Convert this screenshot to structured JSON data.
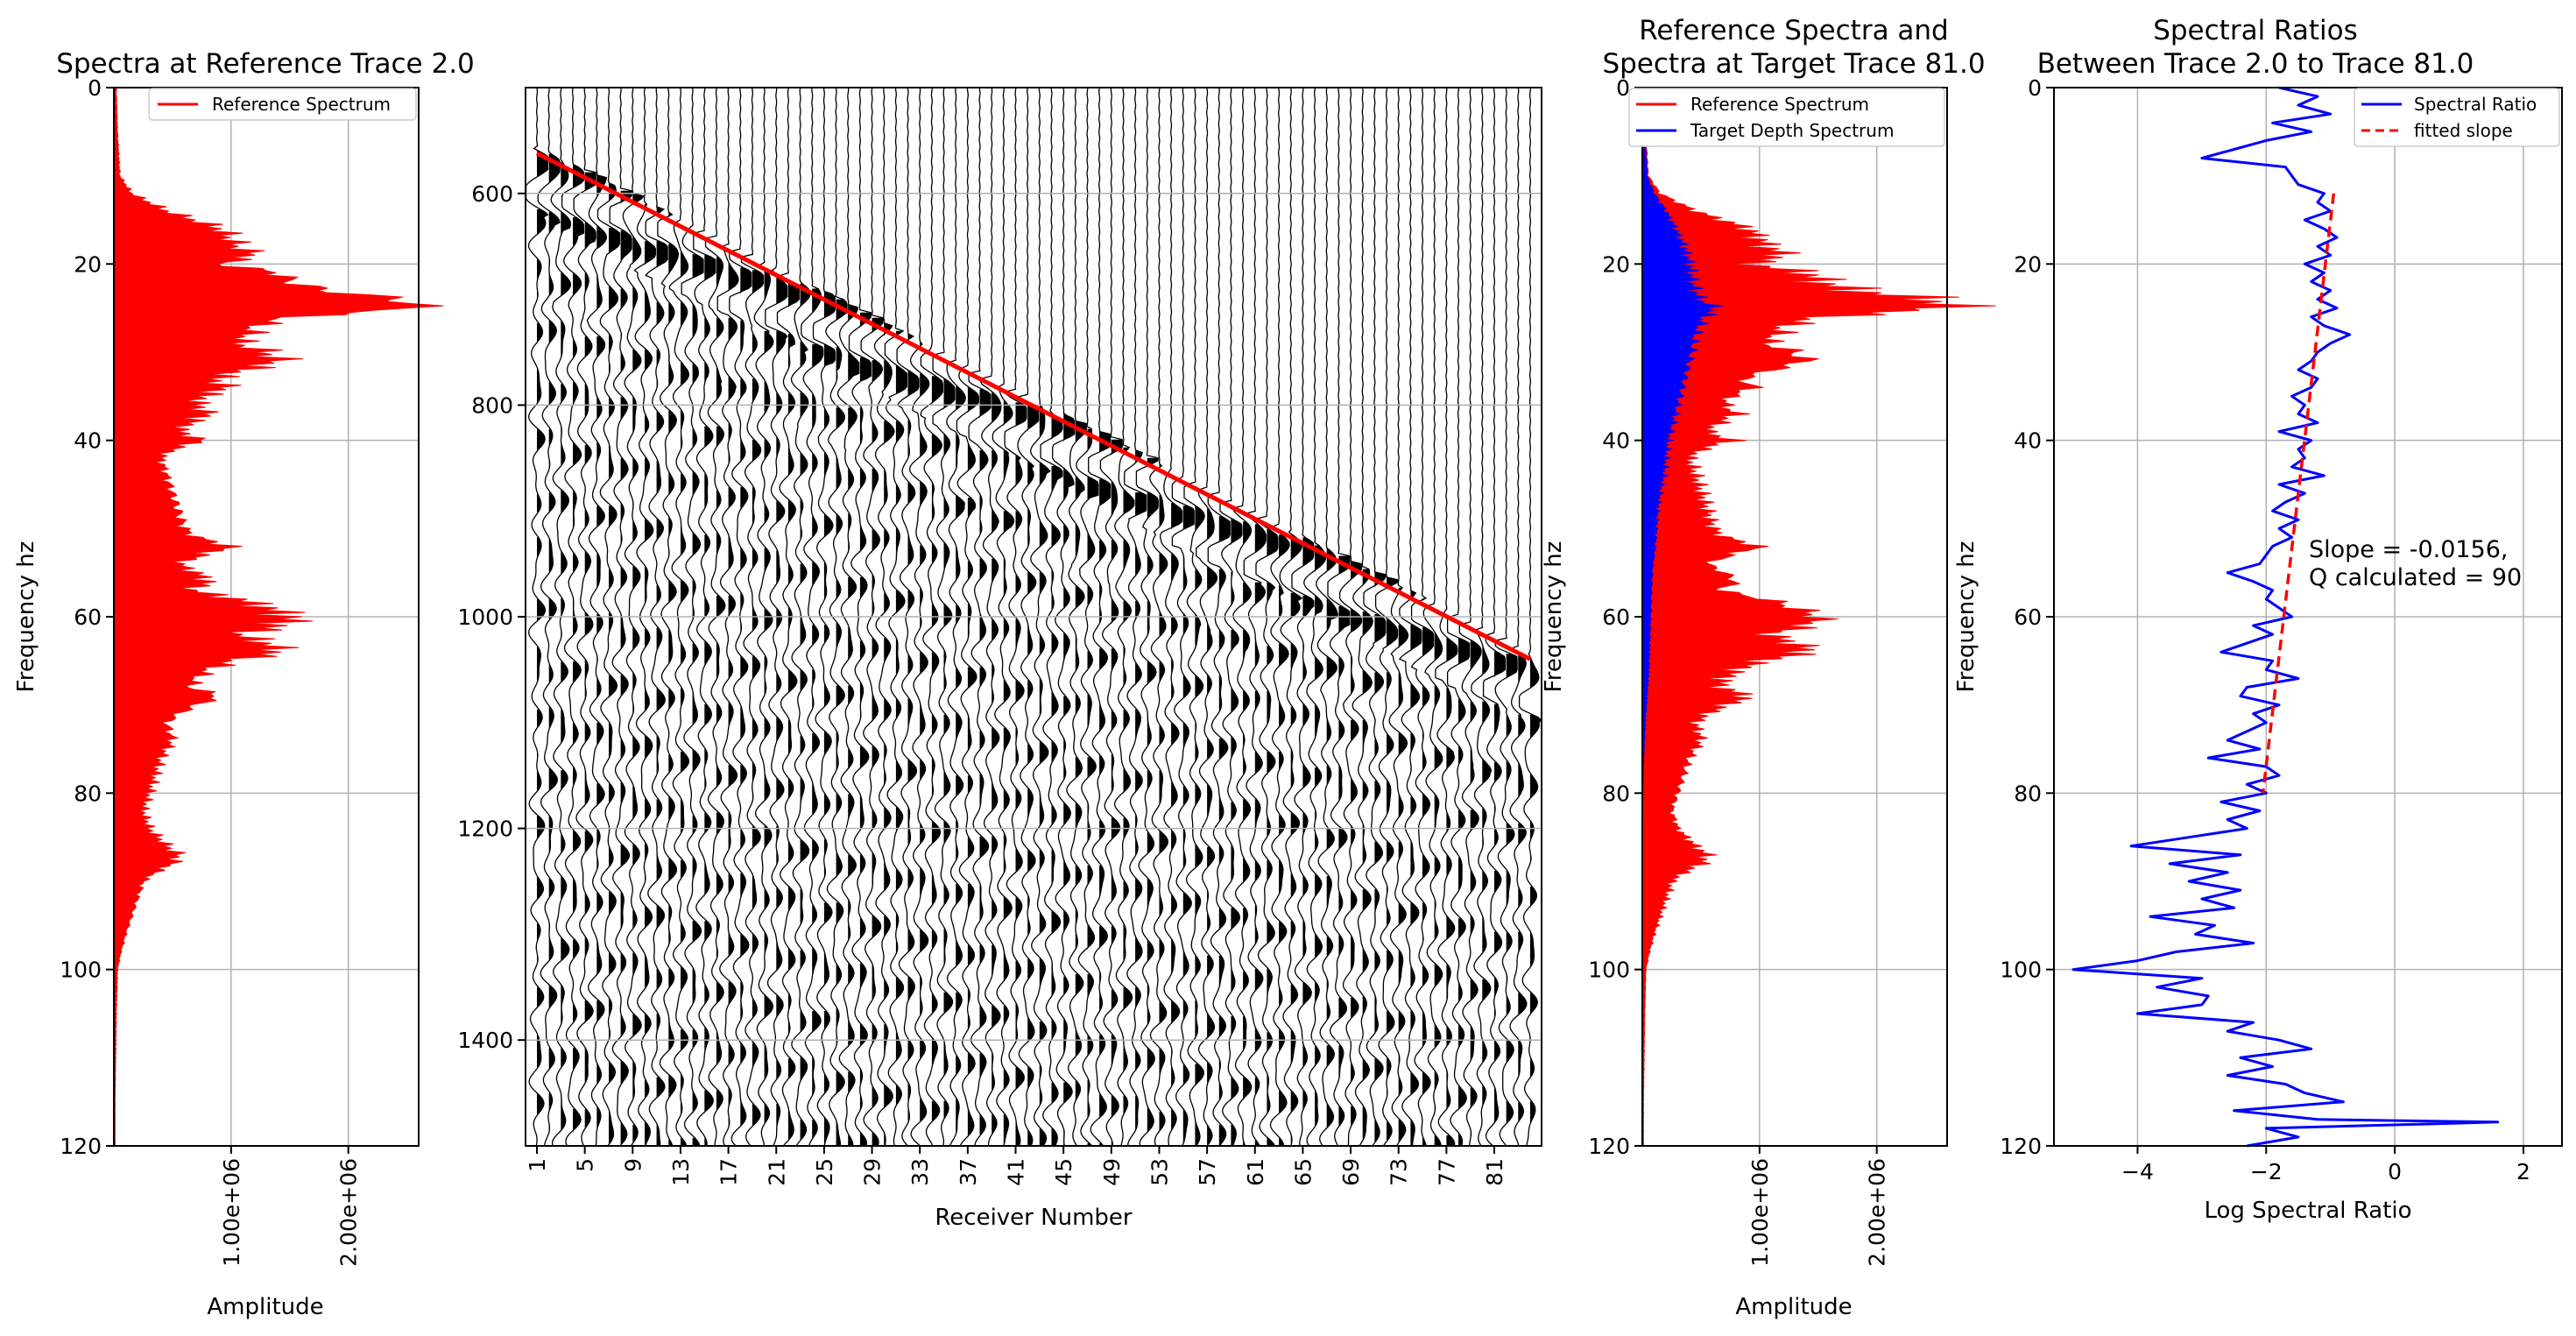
{
  "chart_data": [
    {
      "type": "area",
      "title": "Spectra at Reference Trace 2.0",
      "xlabel": "Amplitude",
      "ylabel": "Frequency hz",
      "ylim": [
        0,
        120
      ],
      "xlim": [
        0,
        2600000
      ],
      "y_inverted": true,
      "x_ticks": [
        "1.00e+06",
        "2.00e+06"
      ],
      "x_tick_values": [
        1000000,
        2000000
      ],
      "y_ticks": [
        "0",
        "20",
        "40",
        "60",
        "80",
        "100",
        "120"
      ],
      "grid": true,
      "legend_position": "top-right",
      "series": [
        {
          "name": "Reference Spectrum",
          "color": "#ff0000",
          "frequency": [
            0,
            5,
            10,
            12,
            14,
            16,
            18,
            19,
            20,
            21,
            22,
            23,
            24,
            25,
            26,
            27,
            28,
            29,
            30,
            31,
            32,
            33,
            34,
            35,
            36,
            37,
            38,
            39,
            40,
            41,
            42,
            44,
            46,
            48,
            50,
            51,
            52,
            53,
            54,
            55,
            56,
            57,
            58,
            59,
            60,
            61,
            62,
            63,
            64,
            65,
            66,
            67,
            68,
            69,
            70,
            71,
            72,
            74,
            76,
            78,
            80,
            82,
            84,
            86,
            87,
            88,
            89,
            90,
            92,
            94,
            96,
            98,
            100,
            105,
            110,
            115,
            120
          ],
          "amplitude": [
            20000,
            30000,
            50000,
            150000,
            450000,
            900000,
            1050000,
            1200000,
            900000,
            1400000,
            1500000,
            1800000,
            2450000,
            2600000,
            1500000,
            1200000,
            1150000,
            1050000,
            1300000,
            1400000,
            1100000,
            850000,
            950000,
            750000,
            700000,
            800000,
            650000,
            550000,
            750000,
            500000,
            400000,
            450000,
            500000,
            550000,
            600000,
            700000,
            1000000,
            750000,
            550000,
            700000,
            800000,
            650000,
            1050000,
            1300000,
            1500000,
            1400000,
            1050000,
            1300000,
            1400000,
            1000000,
            800000,
            700000,
            650000,
            900000,
            700000,
            550000,
            450000,
            500000,
            400000,
            350000,
            300000,
            250000,
            300000,
            450000,
            550000,
            500000,
            350000,
            250000,
            200000,
            150000,
            100000,
            60000,
            30000,
            20000,
            15000,
            10000,
            10000
          ]
        }
      ]
    },
    {
      "type": "line",
      "subtype": "seismic wiggle traces",
      "xlabel": "Receiver Number",
      "ylim": [
        500,
        1500
      ],
      "y_inverted": true,
      "x_ticks": [
        "1",
        "5",
        "9",
        "13",
        "17",
        "21",
        "25",
        "29",
        "33",
        "37",
        "41",
        "45",
        "49",
        "53",
        "57",
        "61",
        "65",
        "69",
        "73",
        "77",
        "81"
      ],
      "y_ticks": [
        "600",
        "800",
        "1000",
        "1200",
        "1400"
      ],
      "receivers": [
        1,
        84
      ],
      "grid": true,
      "first_break_pick": {
        "color": "#ff0000",
        "receiver": [
          1,
          84
        ],
        "time": [
          562,
          1040
        ]
      }
    },
    {
      "type": "area",
      "title": "Reference Spectra and\nSpectra at Target Trace 81.0",
      "xlabel": "Amplitude",
      "ylabel": "Frequency hz",
      "ylim": [
        0,
        120
      ],
      "xlim": [
        0,
        2600000
      ],
      "y_inverted": true,
      "x_ticks": [
        "1.00e+06",
        "2.00e+06"
      ],
      "x_tick_values": [
        1000000,
        2000000
      ],
      "y_ticks": [
        "0",
        "20",
        "40",
        "60",
        "80",
        "100",
        "120"
      ],
      "grid": true,
      "legend_position": "top-right",
      "series": [
        {
          "name": "Reference Spectrum",
          "color": "#ff0000"
        },
        {
          "name": "Target Depth Spectrum",
          "color": "#0000ff",
          "frequency": [
            0,
            5,
            10,
            12,
            14,
            16,
            18,
            20,
            22,
            24,
            25,
            26,
            28,
            30,
            32,
            34,
            36,
            38,
            40,
            42,
            44,
            46,
            48,
            50,
            52,
            54,
            56,
            58,
            60,
            62,
            64,
            66,
            68,
            70,
            72,
            74,
            76,
            78,
            80,
            85,
            90,
            100,
            120
          ],
          "amplitude": [
            10000,
            20000,
            40000,
            100000,
            200000,
            280000,
            350000,
            400000,
            420000,
            480000,
            620000,
            520000,
            450000,
            420000,
            380000,
            340000,
            300000,
            260000,
            220000,
            200000,
            180000,
            150000,
            130000,
            120000,
            110000,
            90000,
            80000,
            75000,
            70000,
            65000,
            60000,
            55000,
            45000,
            35000,
            25000,
            18000,
            12000,
            8000,
            5000,
            3000,
            2000,
            1000,
            0
          ]
        }
      ]
    },
    {
      "type": "line",
      "title": "Spectral Ratios\nBetween Trace 2.0 to Trace 81.0",
      "xlabel": "Log Spectral Ratio",
      "ylabel": "Frequency hz",
      "ylim": [
        0,
        120
      ],
      "xlim": [
        -5.3,
        2.6
      ],
      "y_inverted": true,
      "x_ticks": [
        "−4",
        "−2",
        "0",
        "2"
      ],
      "x_tick_values": [
        -4,
        -2,
        0,
        2
      ],
      "y_ticks": [
        "0",
        "20",
        "40",
        "60",
        "80",
        "100",
        "120"
      ],
      "grid": true,
      "legend_position": "top-right",
      "annotation": "Slope = -0.0156,\nQ calculated = 90",
      "series": [
        {
          "name": "Spectral Ratio",
          "color": "#0000ff",
          "frequency": [
            0,
            1,
            2,
            3,
            4,
            5,
            6,
            7,
            8,
            9,
            10,
            11,
            12,
            13,
            14,
            15,
            16,
            17,
            18,
            19,
            20,
            21,
            22,
            23,
            24,
            25,
            26,
            27,
            28,
            29,
            30,
            31,
            32,
            33,
            34,
            35,
            36,
            37,
            38,
            39,
            40,
            41,
            42,
            43,
            44,
            45,
            46,
            47,
            48,
            49,
            50,
            51,
            52,
            53,
            54,
            55,
            56,
            57,
            58,
            59,
            60,
            61,
            62,
            63,
            64,
            65,
            66,
            67,
            68,
            69,
            70,
            71,
            72,
            73,
            74,
            75,
            76,
            77,
            78,
            79,
            80,
            81,
            82,
            83,
            84,
            85,
            86,
            87,
            88,
            89,
            90,
            91,
            92,
            93,
            94,
            95,
            96,
            97,
            98,
            99,
            100,
            101,
            102,
            103,
            104,
            105,
            106,
            107,
            108,
            109,
            110,
            111,
            112,
            113,
            114,
            115,
            116,
            117,
            118,
            119,
            120
          ],
          "log_ratio": [
            -1.8,
            -1.2,
            -1.5,
            -1.0,
            -1.9,
            -1.3,
            -2.0,
            -2.5,
            -3.0,
            -1.7,
            -1.6,
            -1.5,
            -1.1,
            -1.2,
            -1.0,
            -1.4,
            -1.1,
            -0.9,
            -1.2,
            -1.0,
            -1.4,
            -1.1,
            -1.3,
            -1.0,
            -1.2,
            -0.9,
            -1.3,
            -1.1,
            -0.7,
            -1.0,
            -1.2,
            -1.3,
            -1.5,
            -1.2,
            -1.3,
            -1.6,
            -1.4,
            -1.5,
            -1.2,
            -1.8,
            -1.3,
            -1.5,
            -1.4,
            -1.6,
            -1.1,
            -1.8,
            -1.4,
            -1.7,
            -1.9,
            -1.5,
            -1.8,
            -1.6,
            -1.9,
            -2.0,
            -2.1,
            -2.6,
            -2.2,
            -1.9,
            -2.0,
            -1.8,
            -1.6,
            -2.2,
            -1.9,
            -2.3,
            -2.7,
            -1.9,
            -2.0,
            -1.5,
            -2.3,
            -2.4,
            -1.8,
            -2.2,
            -2.0,
            -2.3,
            -2.6,
            -2.1,
            -2.9,
            -2.0,
            -1.8,
            -2.3,
            -2.0,
            -2.7,
            -2.1,
            -2.6,
            -2.3,
            -3.2,
            -4.1,
            -2.4,
            -3.5,
            -2.6,
            -3.2,
            -2.4,
            -3.0,
            -2.5,
            -3.8,
            -2.8,
            -3.1,
            -2.2,
            -3.4,
            -4.0,
            -5.0,
            -3.0,
            -3.7,
            -2.9,
            -3.0,
            -4.0,
            -2.2,
            -2.6,
            -1.8,
            -1.3,
            -2.4,
            -1.9,
            -2.6,
            -1.7,
            -1.4,
            -0.8,
            -2.5,
            -1.2,
            -2.0,
            -1.5,
            -2.3
          ],
          "spike": {
            "frequency": 117,
            "log_ratio": 1.6
          }
        },
        {
          "name": "fitted slope",
          "color": "#ff0000",
          "style": "dashed",
          "frequency": [
            12,
            80
          ],
          "log_ratio": [
            -0.95,
            -2.05
          ]
        }
      ]
    }
  ]
}
